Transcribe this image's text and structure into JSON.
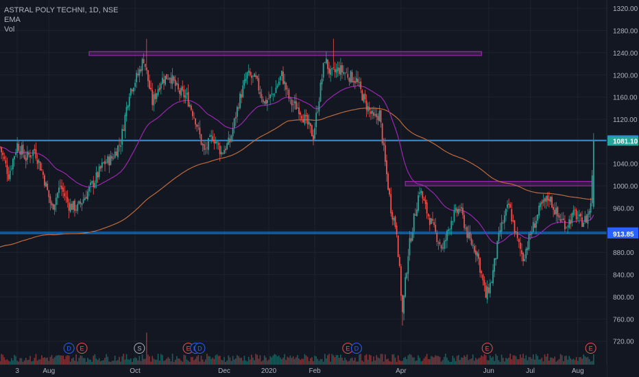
{
  "legend": {
    "symbol": "ASTRAL POLY TECHNI, 1D, NSE",
    "ema_label": "EMA",
    "vol_label": "Vol"
  },
  "colors": {
    "background": "#131722",
    "grid": "#1e222d",
    "up": "#26a69a",
    "down": "#ef5350",
    "ema_fast": "#9c27b0",
    "ema_slow": "#c06a3a",
    "zone": "#9c27b0",
    "hline": "#2196f3",
    "axis_text": "#b2b5be"
  },
  "chart_data": {
    "type": "candlestick",
    "symbol": "ASTRAL POLY TECHNI",
    "timeframe": "1D",
    "exchange": "NSE",
    "indicators": [
      "EMA",
      "Vol"
    ],
    "y_axis": {
      "ticks": [
        720,
        760,
        800,
        840,
        880,
        920,
        960,
        1000,
        1040,
        1080,
        1120,
        1160,
        1200,
        1240,
        1280,
        1320
      ],
      "range": [
        690,
        1335
      ]
    },
    "x_axis": {
      "ticks": [
        {
          "label": "3",
          "day": 12
        },
        {
          "label": "Aug",
          "day": 34
        },
        {
          "label": "Oct",
          "day": 94
        },
        {
          "label": "Dec",
          "day": 156
        },
        {
          "label": "2020",
          "day": 187
        },
        {
          "label": "Feb",
          "day": 219
        },
        {
          "label": "Apr",
          "day": 279
        },
        {
          "label": "Jun",
          "day": 340
        },
        {
          "label": "Jul",
          "day": 369
        },
        {
          "label": "Aug",
          "day": 402
        }
      ],
      "day_range": [
        0,
        415
      ]
    },
    "price_labels": [
      {
        "value": "1082.65",
        "price": 1082.65,
        "color": "#2962ff"
      },
      {
        "value": "1081.10",
        "price": 1081.1,
        "color": "#26a69a"
      },
      {
        "value": "916.40",
        "price": 916.4,
        "color": "#2962ff"
      },
      {
        "value": "913.85",
        "price": 913.85,
        "color": "#2962ff"
      }
    ],
    "horizontal_lines": [
      1082.65,
      1081.1,
      916.4,
      913.85
    ],
    "zones": [
      {
        "day_start": 62,
        "day_end": 335,
        "low": 1235,
        "high": 1242
      },
      {
        "day_start": 282,
        "day_end": 412,
        "low": 1000,
        "high": 1008
      }
    ],
    "series_anchors": [
      [
        0,
        1070
      ],
      [
        6,
        1020
      ],
      [
        12,
        1075
      ],
      [
        18,
        1050
      ],
      [
        24,
        1065
      ],
      [
        30,
        1020
      ],
      [
        36,
        960
      ],
      [
        42,
        1000
      ],
      [
        48,
        965
      ],
      [
        54,
        960
      ],
      [
        60,
        985
      ],
      [
        66,
        1010
      ],
      [
        72,
        1040
      ],
      [
        78,
        1050
      ],
      [
        84,
        1080
      ],
      [
        90,
        1170
      ],
      [
        96,
        1200
      ],
      [
        100,
        1230
      ],
      [
        106,
        1150
      ],
      [
        112,
        1190
      ],
      [
        118,
        1200
      ],
      [
        124,
        1170
      ],
      [
        130,
        1160
      ],
      [
        136,
        1120
      ],
      [
        142,
        1060
      ],
      [
        148,
        1090
      ],
      [
        154,
        1060
      ],
      [
        160,
        1080
      ],
      [
        166,
        1150
      ],
      [
        172,
        1200
      ],
      [
        178,
        1190
      ],
      [
        184,
        1150
      ],
      [
        190,
        1165
      ],
      [
        196,
        1200
      ],
      [
        202,
        1150
      ],
      [
        208,
        1140
      ],
      [
        214,
        1110
      ],
      [
        218,
        1090
      ],
      [
        222,
        1160
      ],
      [
        226,
        1230
      ],
      [
        230,
        1200
      ],
      [
        236,
        1210
      ],
      [
        242,
        1200
      ],
      [
        248,
        1190
      ],
      [
        254,
        1150
      ],
      [
        260,
        1120
      ],
      [
        264,
        1130
      ],
      [
        268,
        1040
      ],
      [
        272,
        960
      ],
      [
        276,
        920
      ],
      [
        280,
        770
      ],
      [
        284,
        880
      ],
      [
        288,
        940
      ],
      [
        292,
        995
      ],
      [
        296,
        960
      ],
      [
        302,
        920
      ],
      [
        308,
        885
      ],
      [
        314,
        940
      ],
      [
        320,
        960
      ],
      [
        326,
        905
      ],
      [
        332,
        880
      ],
      [
        338,
        800
      ],
      [
        342,
        830
      ],
      [
        348,
        920
      ],
      [
        354,
        965
      ],
      [
        360,
        900
      ],
      [
        364,
        870
      ],
      [
        370,
        920
      ],
      [
        376,
        960
      ],
      [
        382,
        980
      ],
      [
        388,
        945
      ],
      [
        394,
        930
      ],
      [
        400,
        950
      ],
      [
        404,
        935
      ],
      [
        408,
        940
      ],
      [
        411,
        965
      ],
      [
        413,
        1081
      ]
    ],
    "markers": [
      {
        "label": "D",
        "day": 48,
        "color": "#2962ff"
      },
      {
        "label": "E",
        "day": 57,
        "color": "#ef5350"
      },
      {
        "label": "S",
        "day": 97,
        "color": "#b2b5be"
      },
      {
        "label": "E",
        "day": 131,
        "color": "#ef5350"
      },
      {
        "label": "D",
        "day": 136,
        "color": "#2962ff"
      },
      {
        "label": "D",
        "day": 139,
        "color": "#2962ff"
      },
      {
        "label": "E",
        "day": 242,
        "color": "#ef5350"
      },
      {
        "label": "D",
        "day": 248,
        "color": "#2962ff"
      },
      {
        "label": "E",
        "day": 339,
        "color": "#ef5350"
      },
      {
        "label": "E",
        "day": 411,
        "color": "#ef5350"
      }
    ],
    "volume_spikes": [
      {
        "day": 102,
        "factor": 10
      }
    ]
  }
}
